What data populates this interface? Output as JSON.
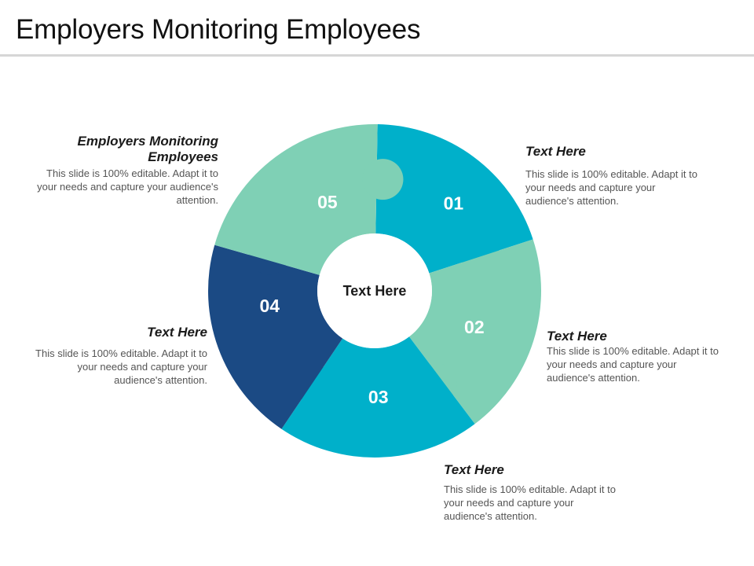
{
  "slide": {
    "title": "Employers Monitoring Employees"
  },
  "diagram": {
    "center_label": "Text Here",
    "segments": [
      {
        "number": "01",
        "color": "#00B0CA"
      },
      {
        "number": "02",
        "color": "#7FD0B5"
      },
      {
        "number": "03",
        "color": "#00B0CA"
      },
      {
        "number": "04",
        "color": "#1B4A84"
      },
      {
        "number": "05",
        "color": "#7FD0B5"
      }
    ]
  },
  "callouts": [
    {
      "id": "01",
      "heading": "Text Here",
      "body": "This slide is 100% editable. Adapt it to your needs and capture your audience's attention."
    },
    {
      "id": "02",
      "heading": "Text Here",
      "body": "This slide is 100% editable. Adapt it to your needs and capture your audience's attention."
    },
    {
      "id": "03",
      "heading": "Text Here",
      "body": "This slide is 100% editable. Adapt it to your needs and capture your audience's attention."
    },
    {
      "id": "04",
      "heading": "Text Here",
      "body": "This slide is 100% editable. Adapt it to your needs and capture your audience's attention."
    },
    {
      "id": "05",
      "heading": "Employers Monitoring Employees",
      "body": "This slide is 100% editable. Adapt it to your needs and capture your audience's attention."
    }
  ]
}
